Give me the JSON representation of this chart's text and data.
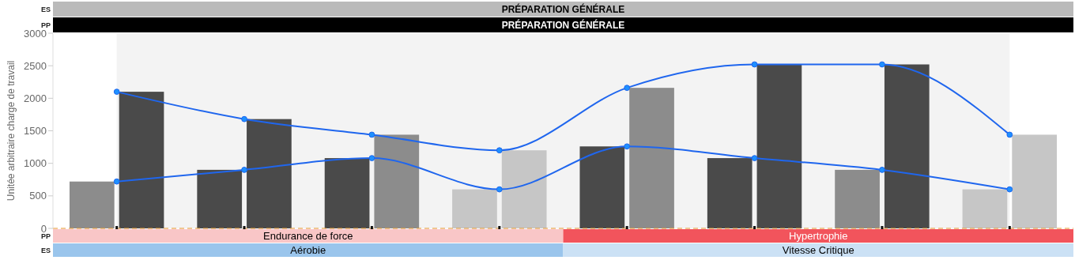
{
  "chart_data": {
    "type": "bar",
    "ylabel": "Unitée arbitraire charge de travail",
    "categories": [
      null,
      null,
      null,
      null,
      null,
      null,
      null,
      null
    ],
    "ylim": [
      0,
      3000
    ],
    "yticks": [
      0,
      500,
      1000,
      1500,
      2000,
      2500,
      3000
    ],
    "grid": false,
    "marker": "circle",
    "line_style": "solid",
    "series": [
      {
        "colors": [
          "#8c8c8c",
          "#4a4a4a",
          "#4a4a4a",
          "#c6c6c6",
          "#4a4a4a",
          "#4a4a4a",
          "#8c8c8c",
          "#c6c6c6"
        ],
        "values": [
          720,
          900,
          1080,
          600,
          1260,
          1080,
          900,
          600
        ]
      },
      {
        "colors": [
          "#4a4a4a",
          "#4a4a4a",
          "#8c8c8c",
          "#c6c6c6",
          "#8c8c8c",
          "#4a4a4a",
          "#4a4a4a",
          "#c6c6c6"
        ],
        "values": [
          2100,
          1680,
          1440,
          1200,
          2160,
          2520,
          2520,
          1440
        ]
      },
      {
        "type": "line",
        "color": "#1f66ee",
        "values": [
          720,
          900,
          1080,
          600,
          1260,
          1080,
          900,
          600
        ]
      },
      {
        "type": "line",
        "color": "#1f66ee",
        "values": [
          2100,
          1680,
          1440,
          1200,
          2160,
          2520,
          2520,
          1440
        ]
      }
    ],
    "annotations": [
      "PRÉPARATION GÉNÉRALE",
      "PRÉPARATION GÉNÉRALE",
      "Endurance de force",
      "Hypertrophie",
      "Aérobie",
      "Vitesse Critique",
      "ES",
      "PP",
      "PP",
      "ES"
    ]
  }
}
